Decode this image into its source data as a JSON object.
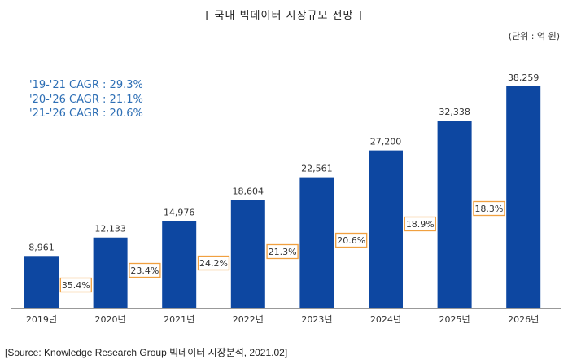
{
  "title": "[ 국내 빅데이터 시장규모 전망 ]",
  "unit": "(단위 : 억 원)",
  "cagr": [
    "'19-'21 CAGR : 29.3%",
    "'20-'26 CAGR : 21.1%",
    "'21-'26 CAGR : 20.6%"
  ],
  "source": "[Source: Knowledge Research Group 빅데이터 시장분석, 2021.02]",
  "colors": {
    "bar": "#0d47a1",
    "growth_border": "#f0a040",
    "cagr_text": "#2e6fb5"
  },
  "chart_data": {
    "type": "bar",
    "title": "국내 빅데이터 시장규모 전망",
    "ylabel": "억 원",
    "categories": [
      "2019년",
      "2020년",
      "2021년",
      "2022년",
      "2023년",
      "2024년",
      "2025년",
      "2026년"
    ],
    "values": [
      8961,
      12133,
      14976,
      18604,
      22561,
      27200,
      32338,
      38259
    ],
    "value_labels": [
      "8,961",
      "12,133",
      "14,976",
      "18,604",
      "22,561",
      "27,200",
      "32,338",
      "38,259"
    ],
    "growth_labels": [
      "35.4%",
      "23.4%",
      "24.2%",
      "21.3%",
      "20.6%",
      "18.9%",
      "18.3%"
    ],
    "ylim": [
      0,
      40000
    ]
  }
}
